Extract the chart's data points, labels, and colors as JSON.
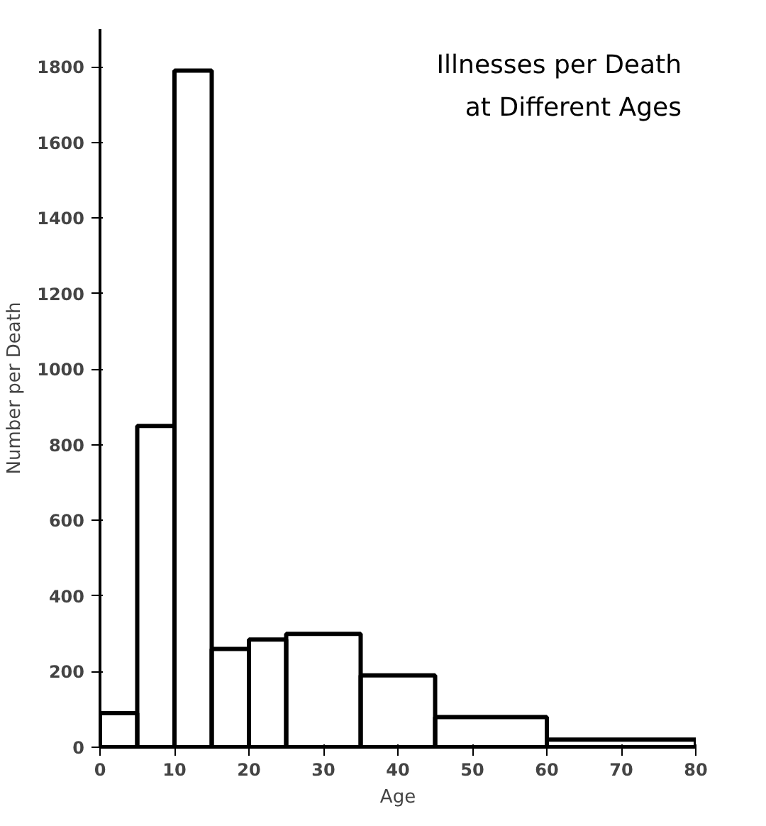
{
  "chart_data": {
    "type": "histogram",
    "title": "Illnesses per Death at Different Ages",
    "xlabel": "Age",
    "ylabel": "Number per Death",
    "bins": [
      0,
      5,
      10,
      15,
      20,
      25,
      35,
      45,
      60,
      80
    ],
    "values": [
      90,
      850,
      1790,
      260,
      285,
      300,
      190,
      80,
      20
    ],
    "color": "#000000",
    "xlim": [
      0,
      80
    ],
    "xticks": [
      0,
      10,
      20,
      30,
      40,
      50,
      60,
      70,
      80
    ],
    "ylim": [
      0,
      1900
    ],
    "yticks": [
      0,
      200,
      400,
      600,
      800,
      1000,
      1200,
      1400,
      1600,
      1800
    ],
    "grid": false
  }
}
